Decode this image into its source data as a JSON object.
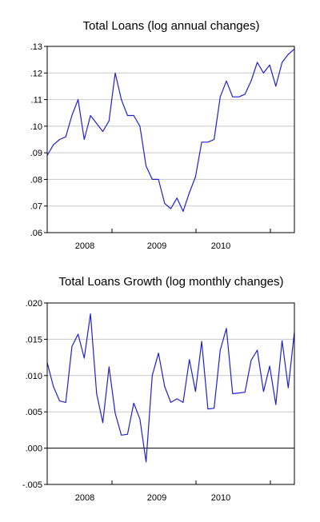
{
  "chart_data": [
    {
      "type": "line",
      "title": "Total Loans (log annual changes)",
      "xlabel": "",
      "ylabel": "",
      "x_tick_labels": [
        "2008",
        "2009",
        "2010"
      ],
      "y_tick_labels": [
        ".06",
        ".07",
        ".08",
        ".09",
        ".10",
        ".11",
        ".12",
        ".13"
      ],
      "y_ticks": [
        0.06,
        0.07,
        0.08,
        0.09,
        0.1,
        0.11,
        0.12,
        0.13
      ],
      "ylim": [
        0.06,
        0.13
      ],
      "grid": true,
      "zero_line": false,
      "series": [
        {
          "color": "#2020d0",
          "values": [
            0.089,
            0.093,
            0.095,
            0.096,
            0.104,
            0.11,
            0.095,
            0.104,
            0.101,
            0.098,
            0.102,
            0.12,
            0.11,
            0.104,
            0.104,
            0.1,
            0.085,
            0.08,
            0.08,
            0.071,
            0.069,
            0.073,
            0.068,
            0.075,
            0.081,
            0.094,
            0.094,
            0.095,
            0.111,
            0.117,
            0.111,
            0.111,
            0.112,
            0.117,
            0.124,
            0.12,
            0.123,
            0.115,
            0.124,
            0.127,
            0.129
          ]
        }
      ]
    },
    {
      "type": "line",
      "title": "Total Loans Growth (log monthly changes)",
      "xlabel": "",
      "ylabel": "",
      "x_tick_labels": [
        "2008",
        "2009",
        "2010"
      ],
      "y_tick_labels": [
        "-.005",
        ".000",
        ".005",
        ".010",
        ".015",
        ".020"
      ],
      "y_ticks": [
        -0.005,
        0.0,
        0.005,
        0.01,
        0.015,
        0.02
      ],
      "ylim": [
        -0.005,
        0.02
      ],
      "grid": true,
      "zero_line": true,
      "series": [
        {
          "color": "#2020d0",
          "values": [
            0.0118,
            0.0085,
            0.0065,
            0.0063,
            0.014,
            0.0157,
            0.0124,
            0.0185,
            0.0075,
            0.0035,
            0.0112,
            0.0048,
            0.0018,
            0.0019,
            0.0062,
            0.004,
            -0.0019,
            0.01,
            0.0131,
            0.0085,
            0.0063,
            0.0068,
            0.0063,
            0.0122,
            0.0078,
            0.0147,
            0.0054,
            0.0055,
            0.0135,
            0.0165,
            0.0075,
            0.0076,
            0.0077,
            0.0121,
            0.0135,
            0.0078,
            0.0113,
            0.006,
            0.0148,
            0.0083,
            0.016
          ]
        }
      ]
    }
  ]
}
